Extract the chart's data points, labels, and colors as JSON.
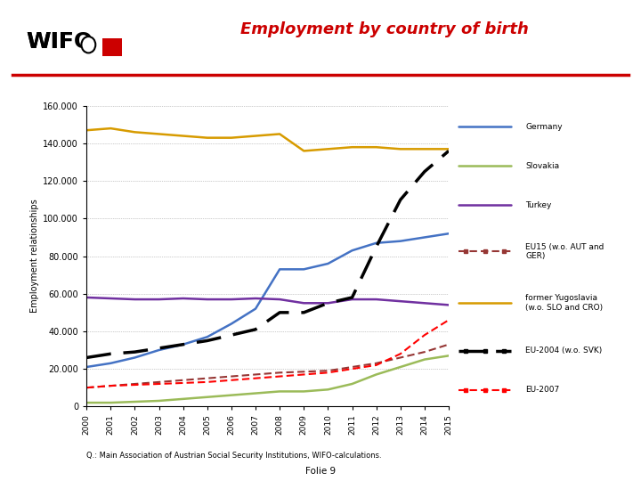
{
  "title": "Employment by country of birth",
  "ylabel": "Employment relationships",
  "years": [
    2000,
    2001,
    2002,
    2003,
    2004,
    2005,
    2006,
    2007,
    2008,
    2009,
    2010,
    2011,
    2012,
    2013,
    2014,
    2015
  ],
  "series": {
    "Germany": {
      "values": [
        21000,
        23000,
        26000,
        30000,
        33000,
        37000,
        44000,
        52000,
        73000,
        73000,
        76000,
        83000,
        87000,
        88000,
        90000,
        92000
      ],
      "color": "#4472C4",
      "linewidth": 1.8,
      "dashes": null
    },
    "Slovakia": {
      "values": [
        2000,
        2000,
        2500,
        3000,
        4000,
        5000,
        6000,
        7000,
        8000,
        8000,
        9000,
        12000,
        17000,
        21000,
        25000,
        27000
      ],
      "color": "#9BBB59",
      "linewidth": 1.8,
      "dashes": null
    },
    "Turkey": {
      "values": [
        58000,
        57500,
        57000,
        57000,
        57500,
        57000,
        57000,
        57500,
        57000,
        55000,
        55000,
        57000,
        57000,
        56000,
        55000,
        54000
      ],
      "color": "#7030A0",
      "linewidth": 1.8,
      "dashes": null
    },
    "EU15 (w.o. AUT and GER)": {
      "values": [
        10000,
        11000,
        12000,
        13000,
        14000,
        15000,
        16000,
        17000,
        18000,
        18500,
        19000,
        21000,
        23000,
        26000,
        29000,
        33000
      ],
      "color": "#963634",
      "linewidth": 1.5,
      "dashes": [
        4,
        2
      ]
    },
    "former Yugoslavia (w.o. SLO and CRO)": {
      "values": [
        147000,
        148000,
        146000,
        145000,
        144000,
        143000,
        143000,
        144000,
        145000,
        136000,
        137000,
        138000,
        138000,
        137000,
        137000,
        137000
      ],
      "color": "#D79B00",
      "linewidth": 1.8,
      "dashes": null
    },
    "EU-2004 (w.o. SVK)": {
      "values": [
        26000,
        28000,
        29000,
        31000,
        33000,
        35000,
        38000,
        41000,
        50000,
        50000,
        55000,
        58000,
        85000,
        110000,
        125000,
        136000
      ],
      "color": "#000000",
      "linewidth": 2.5,
      "dashes": [
        8,
        4
      ]
    },
    "EU-2007": {
      "values": [
        10000,
        11000,
        11500,
        12000,
        12500,
        13000,
        14000,
        15000,
        16000,
        17000,
        18000,
        20000,
        22000,
        28000,
        38000,
        46000
      ],
      "color": "#FF0000",
      "linewidth": 1.5,
      "dashes": [
        4,
        2
      ]
    }
  },
  "ylim": [
    0,
    160000
  ],
  "yticks": [
    0,
    20000,
    40000,
    60000,
    80000,
    100000,
    120000,
    140000,
    160000
  ],
  "background_color": "#FFFFFF",
  "grid_color": "#999999",
  "title_color": "#CC0000",
  "red_line_color": "#CC0000",
  "source_text": "Q.: Main Association of Austrian Social Security Institutions, WIFO-calculations.",
  "folio_text": "Folie 9",
  "legend_items": [
    {
      "label": "Germany",
      "color": "#4472C4",
      "dashes": null,
      "linewidth": 1.8
    },
    {
      "label": "Slovakia",
      "color": "#9BBB59",
      "dashes": null,
      "linewidth": 1.8
    },
    {
      "label": "Turkey",
      "color": "#7030A0",
      "dashes": null,
      "linewidth": 1.8
    },
    {
      "label": "EU15 (w.o. AUT and\nGER)",
      "color": "#963634",
      "dashes": [
        4,
        2
      ],
      "linewidth": 1.5
    },
    {
      "label": "former Yugoslavia\n(w.o. SLO and CRO)",
      "color": "#D79B00",
      "dashes": null,
      "linewidth": 1.8
    },
    {
      "label": "EU-2004 (w.o. SVK)",
      "color": "#000000",
      "dashes": [
        8,
        4
      ],
      "linewidth": 2.5
    },
    {
      "label": "EU-2007",
      "color": "#FF0000",
      "dashes": [
        4,
        2
      ],
      "linewidth": 1.5
    }
  ]
}
